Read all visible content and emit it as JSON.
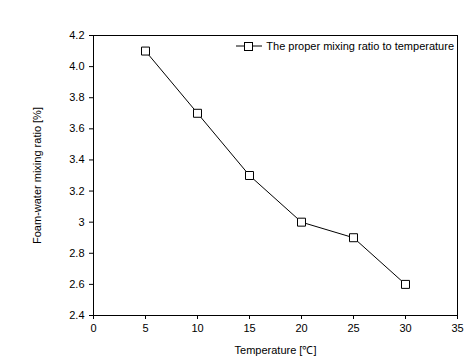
{
  "chart_data": {
    "type": "line",
    "x_label": "Temperature [℃]",
    "y_label": "Foam-water mixing ratio [%]",
    "x": [
      5,
      10,
      15,
      20,
      25,
      30
    ],
    "series": [
      {
        "name": "The proper mixing ratio to temperature",
        "color": "#000000",
        "marker": "square",
        "values": [
          4.1,
          3.7,
          3.3,
          3.0,
          2.9,
          2.6
        ]
      }
    ],
    "xlim": [
      0,
      35
    ],
    "xticks": [
      0,
      5,
      10,
      15,
      20,
      25,
      30,
      35
    ],
    "ylim": [
      2.4,
      4.2
    ],
    "yticks": [
      2.4,
      2.6,
      2.8,
      3.0,
      {
        "value": 4,
        "label": "4.0"
      },
      3.2,
      3.4,
      3.6,
      3.8,
      4.2
    ],
    "legend": "upper right",
    "grid": false
  }
}
